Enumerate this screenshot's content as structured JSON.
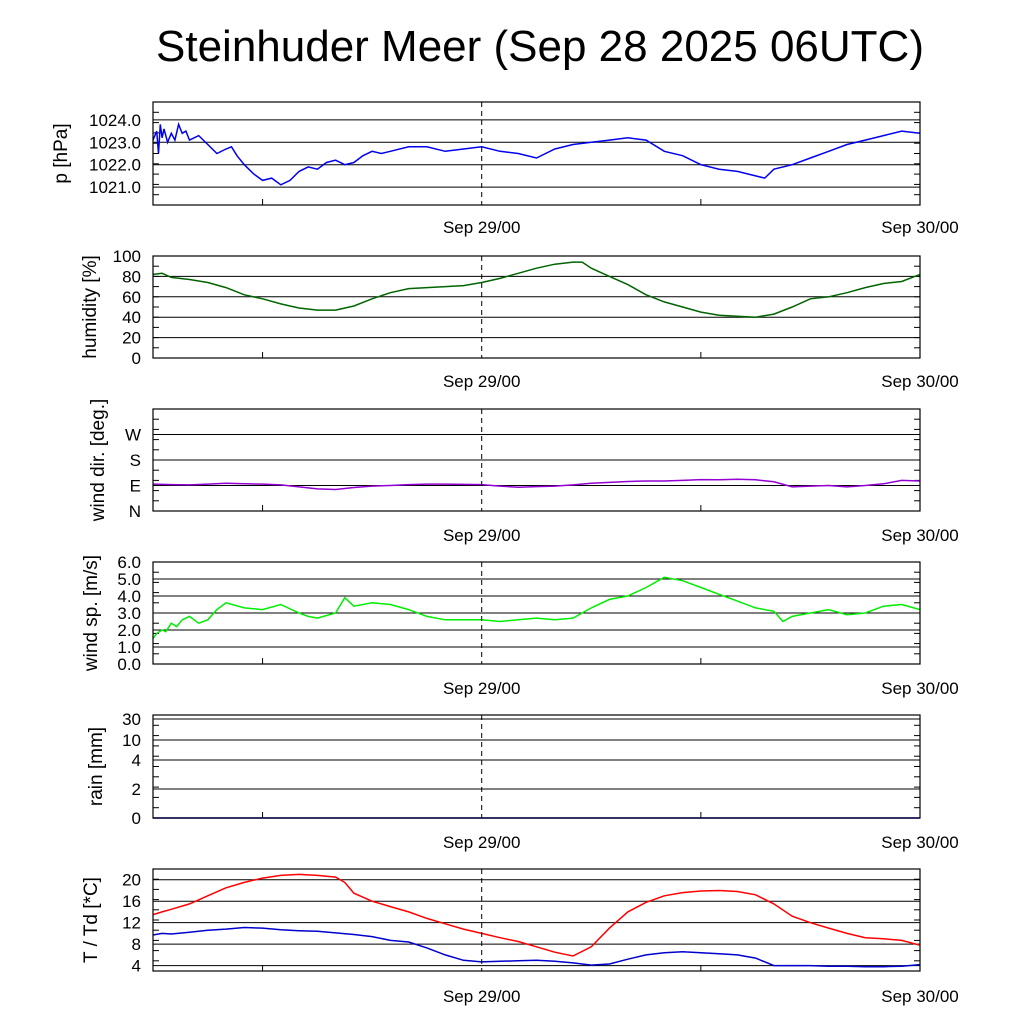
{
  "title": "Steinhuder Meer (Sep 28 2025 06UTC)",
  "colors": {
    "pressure": "#0000ee",
    "humidity": "#006400",
    "wind_dir": "#9400d3",
    "wind_speed": "#00ee00",
    "rain": "#0000ee",
    "temperature": "#ff0000",
    "dewpoint": "#0000cc"
  },
  "chart_data": [
    {
      "type": "line",
      "name": "pressure",
      "ylabel": "p [hPa]",
      "ylim": [
        1020.2,
        1024.8
      ],
      "yticks": [
        1021.0,
        1022.0,
        1023.0,
        1024.0
      ],
      "ytick_labels": [
        "1021.0",
        "1022.0",
        "1023.0",
        "1024.0"
      ],
      "x_ticks": [
        [
          "Sep 29/00",
          18
        ],
        [
          "Sep 30/00",
          42
        ]
      ],
      "x_range_hours": [
        0,
        42
      ],
      "series": [
        {
          "name": "p",
          "color_key": "pressure",
          "x": [
            0,
            0.2,
            0.3,
            0.4,
            0.5,
            0.6,
            0.8,
            1.0,
            1.2,
            1.4,
            1.6,
            1.8,
            2.0,
            2.5,
            3,
            3.5,
            4,
            4.3,
            4.6,
            5,
            5.5,
            6,
            6.5,
            7,
            7.5,
            8,
            8.5,
            9,
            9.5,
            10,
            10.5,
            11,
            11.5,
            12,
            12.5,
            13,
            14,
            15,
            16,
            17,
            18,
            19,
            20,
            21,
            22,
            23,
            24,
            25,
            26,
            27,
            28,
            29,
            30,
            31,
            32,
            33,
            33.5,
            34,
            35,
            36,
            37,
            38,
            39,
            40,
            41,
            42
          ],
          "y": [
            1023.1,
            1023.5,
            1022.5,
            1023.8,
            1023.2,
            1023.6,
            1023.0,
            1023.4,
            1023.1,
            1023.8,
            1023.4,
            1023.5,
            1023.1,
            1023.3,
            1022.9,
            1022.5,
            1022.7,
            1022.8,
            1022.4,
            1022.0,
            1021.6,
            1021.3,
            1021.4,
            1021.1,
            1021.3,
            1021.7,
            1021.9,
            1021.8,
            1022.1,
            1022.2,
            1022.0,
            1022.1,
            1022.4,
            1022.6,
            1022.5,
            1022.6,
            1022.8,
            1022.8,
            1022.6,
            1022.7,
            1022.8,
            1022.6,
            1022.5,
            1022.3,
            1022.7,
            1022.9,
            1023.0,
            1023.1,
            1023.2,
            1023.1,
            1022.6,
            1022.4,
            1022.0,
            1021.8,
            1021.7,
            1021.5,
            1021.4,
            1021.8,
            1022.0,
            1022.3,
            1022.6,
            1022.9,
            1023.1,
            1023.3,
            1023.5,
            1023.4
          ]
        }
      ]
    },
    {
      "type": "line",
      "name": "humidity",
      "ylabel": "humidity [%]",
      "ylim": [
        0,
        100
      ],
      "yticks": [
        0,
        20,
        40,
        60,
        80,
        100
      ],
      "ytick_labels": [
        "0",
        "20",
        "40",
        "60",
        "80",
        "100"
      ],
      "x_ticks": [
        [
          "Sep 29/00",
          18
        ],
        [
          "Sep 30/00",
          42
        ]
      ],
      "x_range_hours": [
        0,
        42
      ],
      "series": [
        {
          "name": "humidity",
          "color_key": "humidity",
          "x": [
            0,
            0.5,
            1,
            2,
            3,
            4,
            5,
            6,
            7,
            7.5,
            8,
            9,
            10,
            11,
            12,
            13,
            14,
            15,
            16,
            17,
            18,
            19,
            20,
            21,
            22,
            23,
            23.5,
            24,
            25,
            26,
            27,
            28,
            29,
            30,
            31,
            32,
            33,
            34,
            35,
            36,
            37,
            38,
            39,
            40,
            41,
            42
          ],
          "y": [
            82,
            83,
            79,
            77,
            74,
            69,
            62,
            58,
            53,
            51,
            49,
            47,
            47,
            51,
            58,
            64,
            68,
            69,
            70,
            71,
            74,
            78,
            83,
            88,
            92,
            94,
            94,
            88,
            80,
            72,
            62,
            55,
            50,
            45,
            42,
            41,
            40,
            43,
            50,
            58,
            60,
            64,
            69,
            73,
            75,
            82
          ]
        }
      ]
    },
    {
      "type": "line",
      "name": "wind_direction",
      "ylabel": "wind dir. [deg.]",
      "ylim": [
        0,
        360
      ],
      "yticks": [
        0,
        90,
        180,
        270
      ],
      "ytick_labels": [
        "N",
        "E",
        "S",
        "W"
      ],
      "x_ticks": [
        [
          "Sep 29/00",
          18
        ],
        [
          "Sep 30/00",
          42
        ]
      ],
      "x_range_hours": [
        0,
        42
      ],
      "series": [
        {
          "name": "wind direction",
          "color_key": "wind_dir",
          "x": [
            0,
            1,
            2,
            3,
            4,
            5,
            6,
            7,
            8,
            9,
            10,
            11,
            12,
            13,
            14,
            15,
            16,
            17,
            18,
            19,
            20,
            21,
            22,
            23,
            24,
            25,
            26,
            27,
            28,
            29,
            30,
            31,
            32,
            33,
            34,
            35,
            36,
            37,
            38,
            39,
            40,
            41,
            42
          ],
          "y": [
            95,
            93,
            92,
            95,
            98,
            96,
            95,
            92,
            85,
            78,
            76,
            83,
            88,
            90,
            93,
            95,
            95,
            94,
            93,
            88,
            84,
            86,
            88,
            92,
            98,
            101,
            104,
            106,
            106,
            108,
            111,
            110,
            112,
            110,
            103,
            85,
            88,
            90,
            85,
            90,
            96,
            108,
            106
          ]
        }
      ]
    },
    {
      "type": "line",
      "name": "wind_speed",
      "ylabel": "wind sp. [m/s]",
      "ylim": [
        0,
        6
      ],
      "yticks": [
        0,
        1,
        2,
        3,
        4,
        5,
        6
      ],
      "ytick_labels": [
        "0.0",
        "1.0",
        "2.0",
        "3.0",
        "4.0",
        "5.0",
        "6.0"
      ],
      "x_ticks": [
        [
          "Sep 29/00",
          18
        ],
        [
          "Sep 30/00",
          42
        ]
      ],
      "x_range_hours": [
        0,
        42
      ],
      "series": [
        {
          "name": "wind speed",
          "color_key": "wind_speed",
          "x": [
            0,
            0.2,
            0.5,
            0.7,
            1.0,
            1.3,
            1.6,
            2.0,
            2.5,
            3,
            3.5,
            4,
            5,
            6,
            7,
            8,
            8.5,
            9,
            10,
            10.5,
            11,
            12,
            13,
            14,
            15,
            16,
            17,
            18,
            19,
            20,
            21,
            22,
            23,
            23.5,
            24,
            25,
            26,
            27,
            28,
            29,
            30,
            31,
            32,
            33,
            34,
            34.5,
            35,
            36,
            37,
            38,
            39,
            40,
            41,
            42
          ],
          "y": [
            1.5,
            1.8,
            2.0,
            1.9,
            2.4,
            2.2,
            2.6,
            2.8,
            2.4,
            2.6,
            3.2,
            3.6,
            3.3,
            3.2,
            3.5,
            3.0,
            2.8,
            2.7,
            3.0,
            3.9,
            3.4,
            3.6,
            3.5,
            3.2,
            2.8,
            2.6,
            2.6,
            2.6,
            2.5,
            2.6,
            2.7,
            2.6,
            2.7,
            3.0,
            3.3,
            3.8,
            4.0,
            4.5,
            5.1,
            4.9,
            4.5,
            4.1,
            3.7,
            3.3,
            3.1,
            2.5,
            2.8,
            3.0,
            3.2,
            2.9,
            3.0,
            3.4,
            3.5,
            3.2
          ]
        }
      ]
    },
    {
      "type": "line",
      "name": "rain",
      "ylabel": "rain [mm]",
      "ylim": [
        0,
        30
      ],
      "yticks": [
        0,
        2,
        4,
        10,
        30
      ],
      "ytick_labels": [
        "0",
        "2",
        "4",
        "10",
        "30"
      ],
      "x_ticks": [
        [
          "Sep 29/00",
          18
        ],
        [
          "Sep 30/00",
          42
        ]
      ],
      "x_range_hours": [
        0,
        42
      ],
      "series": [
        {
          "name": "rain",
          "color_key": "rain",
          "x": [
            0,
            42
          ],
          "y": [
            0,
            0
          ]
        }
      ]
    },
    {
      "type": "line",
      "name": "temperature_dewpoint",
      "ylabel": "T / Td [*C]",
      "ylim": [
        3,
        22
      ],
      "yticks": [
        4,
        8,
        12,
        16,
        20
      ],
      "ytick_labels": [
        "4",
        "8",
        "12",
        "16",
        "20"
      ],
      "x_ticks": [
        [
          "Sep 29/00",
          18
        ],
        [
          "Sep 30/00",
          42
        ]
      ],
      "x_range_hours": [
        0,
        42
      ],
      "series": [
        {
          "name": "T",
          "color_key": "temperature",
          "x": [
            0,
            0.5,
            1,
            2,
            3,
            4,
            5,
            6,
            7,
            8,
            9,
            10,
            10.5,
            11,
            12,
            13,
            14,
            15,
            16,
            17,
            18,
            19,
            20,
            21,
            22,
            23,
            24,
            25,
            26,
            27,
            28,
            29,
            30,
            31,
            32,
            33,
            34,
            35,
            36,
            37,
            38,
            39,
            40,
            41,
            42
          ],
          "y": [
            13.5,
            14,
            14.5,
            15.5,
            17,
            18.5,
            19.5,
            20.3,
            20.8,
            21,
            20.8,
            20.5,
            19.5,
            17.5,
            16,
            15,
            14,
            12.8,
            11.8,
            10.8,
            10,
            9.2,
            8.5,
            7.5,
            6.5,
            5.8,
            7.5,
            11,
            14,
            15.8,
            17,
            17.6,
            17.9,
            18,
            17.8,
            17.2,
            15.5,
            13.2,
            12,
            11,
            10,
            9.2,
            9,
            8.7,
            7.8
          ]
        },
        {
          "name": "Td",
          "color_key": "dewpoint",
          "x": [
            0,
            0.5,
            1,
            2,
            3,
            4,
            5,
            6,
            7,
            8,
            9,
            10,
            11,
            12,
            13,
            14,
            15,
            16,
            17,
            18,
            19,
            20,
            21,
            22,
            23,
            24,
            25,
            26,
            27,
            28,
            29,
            30,
            31,
            32,
            33,
            34,
            35,
            36,
            37,
            38,
            39,
            40,
            41,
            42
          ],
          "y": [
            9.7,
            10,
            9.9,
            10.2,
            10.6,
            10.8,
            11.1,
            11,
            10.7,
            10.5,
            10.4,
            10.1,
            9.8,
            9.4,
            8.7,
            8.4,
            7.3,
            6,
            5,
            4.7,
            4.8,
            4.9,
            5,
            4.8,
            4.5,
            4.1,
            4.3,
            5.2,
            6,
            6.4,
            6.6,
            6.4,
            6.2,
            6,
            5.4,
            4,
            4,
            4,
            3.9,
            3.9,
            3.8,
            3.8,
            3.9,
            4.2
          ]
        }
      ]
    }
  ]
}
